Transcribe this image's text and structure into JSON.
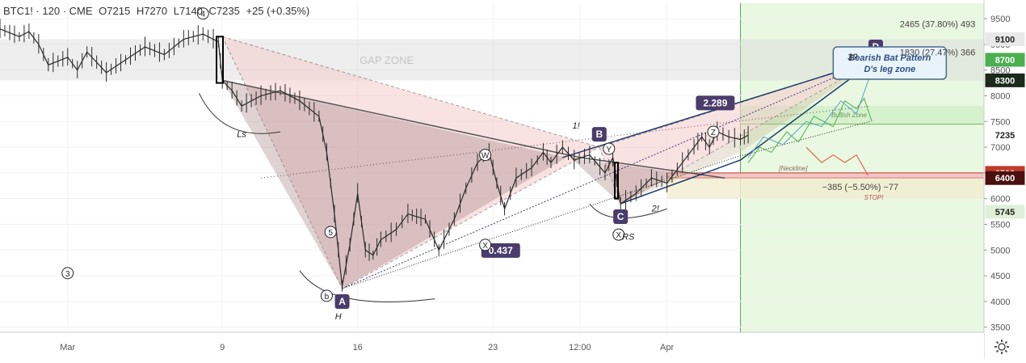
{
  "chart_data": {
    "type": "line",
    "title": "BTC1! · 120 · CME",
    "ohlc": {
      "open": "O7215",
      "high": "H7270",
      "low": "L7140",
      "close": "C7235",
      "change": "+25 (+0.35%)"
    },
    "y_axis": {
      "ticks": [
        9500,
        9000,
        8500,
        8000,
        7500,
        7000,
        6500,
        6000,
        5500,
        5000,
        4500,
        4000,
        3500
      ],
      "range": [
        3400,
        9800
      ]
    },
    "x_axis": {
      "ticks": [
        {
          "label": "Mar",
          "x": 0
        },
        {
          "label": "9",
          "x": 8
        },
        {
          "label": "16",
          "x": 15
        },
        {
          "label": "23",
          "x": 22
        },
        {
          "label": "12:00",
          "x": 26.5
        },
        {
          "label": "Apr",
          "x": 31
        }
      ],
      "range": [
        -3.5,
        47.4
      ]
    },
    "price_badges": [
      {
        "value": "9100",
        "price": 9100,
        "color": "#e8e8e8",
        "text_color": "#222222"
      },
      {
        "value": "8700",
        "price": 8700,
        "color": "#4caf50",
        "text_color": "#ffffff"
      },
      {
        "value": "8300",
        "price": 8300,
        "color": "#1b2a1b",
        "text_color": "#ffffff"
      },
      {
        "value": "7235",
        "price": 7235,
        "color": "#ffffff",
        "text_color": "#222222"
      },
      {
        "value": "6500",
        "price": 6500,
        "color": "#c0392b",
        "text_color": "#ffffff"
      },
      {
        "value": "6400",
        "price": 6400,
        "color": "#4a1010",
        "text_color": "#ffffff"
      },
      {
        "value": "5745",
        "price": 5745,
        "color": "#dff0d8",
        "text_color": "#222222"
      }
    ],
    "price_path": [
      [
        -3.5,
        9300
      ],
      [
        -2.5,
        9150
      ],
      [
        -2,
        9250
      ],
      [
        -1.5,
        9000
      ],
      [
        -1,
        8600
      ],
      [
        0,
        8750
      ],
      [
        0.5,
        8500
      ],
      [
        1,
        8850
      ],
      [
        2,
        8450
      ],
      [
        3,
        8700
      ],
      [
        4,
        8950
      ],
      [
        5,
        8800
      ],
      [
        6,
        9100
      ],
      [
        7,
        9200
      ],
      [
        7.8,
        9050
      ],
      [
        8,
        8300
      ],
      [
        8.5,
        8100
      ],
      [
        9,
        7800
      ],
      [
        10,
        8000
      ],
      [
        11,
        8100
      ],
      [
        12,
        7900
      ],
      [
        13,
        7600
      ],
      [
        13.4,
        6900
      ],
      [
        13.8,
        5700
      ],
      [
        14.2,
        4300
      ],
      [
        14.6,
        5100
      ],
      [
        15,
        6100
      ],
      [
        15.4,
        5000
      ],
      [
        15.8,
        4900
      ],
      [
        16.2,
        5200
      ],
      [
        17,
        5400
      ],
      [
        17.6,
        5700
      ],
      [
        18.5,
        5600
      ],
      [
        19.2,
        5000
      ],
      [
        20,
        5600
      ],
      [
        20.6,
        6200
      ],
      [
        21.2,
        6700
      ],
      [
        21.8,
        6900
      ],
      [
        22.2,
        6300
      ],
      [
        22.6,
        5800
      ],
      [
        23.2,
        6400
      ],
      [
        24,
        6600
      ],
      [
        24.6,
        6900
      ],
      [
        25,
        6700
      ],
      [
        25.6,
        7000
      ],
      [
        26.2,
        6750
      ],
      [
        27,
        6850
      ],
      [
        27.8,
        6500
      ],
      [
        28.2,
        6800
      ],
      [
        28.6,
        5900
      ],
      [
        29.4,
        6100
      ],
      [
        30.2,
        6400
      ],
      [
        31,
        6300
      ],
      [
        31.8,
        6700
      ],
      [
        32.4,
        7000
      ],
      [
        32.8,
        7200
      ],
      [
        33.2,
        7000
      ],
      [
        33.6,
        7300
      ],
      [
        34.2,
        7200
      ],
      [
        34.8,
        7150
      ],
      [
        35.2,
        7235
      ]
    ],
    "zones": [
      {
        "label": "GAP ZONE",
        "from": 8300,
        "to": 9100
      },
      {
        "label": "Bullish Zone",
        "from": 7450,
        "to": 7800
      },
      {
        "label": "[Neckline]",
        "from": 6400,
        "to": 6500
      }
    ],
    "pattern": {
      "label": "Bearish Bat Pattern",
      "sublabel": "D's leg zone",
      "points": {
        "X": [
          8,
          9150
        ],
        "A": [
          14.2,
          4250
        ],
        "B": [
          27.5,
          7000
        ],
        "C": [
          28.6,
          5900
        ],
        "D": [
          41.8,
          8700
        ]
      },
      "ratios": [
        {
          "value": "2.289",
          "at": [
            33.5,
            7860
          ]
        },
        {
          "value": "0.437",
          "at": [
            22.4,
            4990
          ]
        }
      ]
    },
    "projection_bull": [
      [
        35.2,
        6800
      ],
      [
        36,
        7200
      ],
      [
        37,
        7050
      ],
      [
        38.2,
        7500
      ],
      [
        39,
        7400
      ],
      [
        40,
        7900
      ],
      [
        40.8,
        7650
      ],
      [
        41.8,
        8700
      ]
    ],
    "projection_alt": [
      [
        35.2,
        6700
      ],
      [
        35.8,
        7000
      ],
      [
        36.4,
        6900
      ],
      [
        37.2,
        7300
      ],
      [
        37.8,
        7100
      ],
      [
        38.6,
        7600
      ],
      [
        39.6,
        7400
      ],
      [
        40.2,
        7900
      ],
      [
        40.8,
        7750
      ],
      [
        41.2,
        7950
      ],
      [
        41.6,
        7500
      ]
    ],
    "projection_bear": [
      [
        38.2,
        7000
      ],
      [
        39,
        6700
      ],
      [
        39.6,
        6850
      ],
      [
        40.2,
        6700
      ],
      [
        40.8,
        6850
      ],
      [
        41.4,
        6450
      ]
    ],
    "stats": [
      {
        "text": "2465 (37.80%) 493",
        "at": [
          45,
          9400
        ]
      },
      {
        "text": "1830 (27.47%) 366",
        "at": [
          45,
          8850
        ]
      },
      {
        "text": "−385 (−5.50%) −77",
        "at": [
          41,
          6230
        ]
      }
    ],
    "stop_label": "STOP!",
    "wave_labels": [
      {
        "text": "3",
        "at": [
          0,
          4550
        ],
        "circled": true
      },
      {
        "text": "4",
        "at": [
          7,
          9600
        ],
        "circled": true
      },
      {
        "text": "5",
        "at": [
          13.6,
          5350
        ],
        "circled": true
      },
      {
        "text": "b",
        "at": [
          13.4,
          4110
        ],
        "circled": true
      },
      {
        "text": "W",
        "at": [
          21.6,
          6850
        ],
        "circled": true
      },
      {
        "text": "X",
        "at": [
          21.6,
          5100
        ],
        "circled": true
      },
      {
        "text": "Y",
        "at": [
          28,
          6970
        ],
        "circled": true
      },
      {
        "text": "X",
        "at": [
          28.5,
          5300
        ],
        "circled": true
      },
      {
        "text": "Z",
        "at": [
          33.4,
          7300
        ],
        "circled": true
      },
      {
        "text": "Ls",
        "at": [
          9,
          7200
        ],
        "circled": false
      },
      {
        "text": "H",
        "at": [
          14,
          3650
        ],
        "circled": false
      },
      {
        "text": "RS",
        "at": [
          29,
          5200
        ],
        "circled": false
      },
      {
        "text": "1!",
        "at": [
          26.3,
          7360
        ],
        "circled": false
      },
      {
        "text": "2!",
        "at": [
          30.4,
          5750
        ],
        "circled": false
      },
      {
        "text": "3?",
        "at": [
          40.6,
          8700
        ],
        "circled": false
      }
    ]
  }
}
